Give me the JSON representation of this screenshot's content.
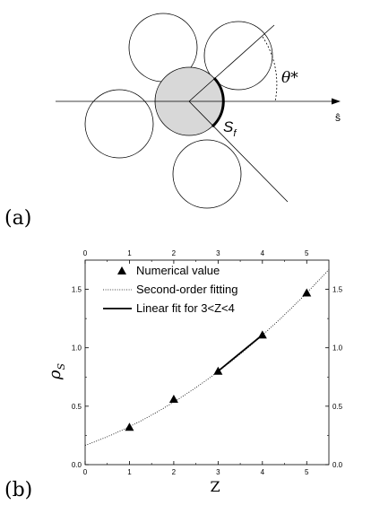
{
  "panel_a": {
    "label": "(a)",
    "theta_label": "θ*",
    "sf_label": "S",
    "sf_subscript": "f",
    "s_hat_label": "ŝ"
  },
  "panel_b": {
    "label": "(b)"
  },
  "chart_data": {
    "type": "scatter",
    "xlabel": "Z",
    "ylabel": "ρ",
    "ylabel_subscript": "S",
    "xlim": [
      0,
      5.5
    ],
    "ylim": [
      0,
      1.75
    ],
    "x_ticks": [
      "0",
      "1",
      "2",
      "3",
      "4",
      "5"
    ],
    "y_ticks": [
      "0.0",
      "0.5",
      "1.0",
      "1.5"
    ],
    "grid": false,
    "legend_position": "top-left",
    "series": [
      {
        "name": "Numerical value",
        "kind": "markers",
        "marker": "triangle",
        "x": [
          1,
          2,
          3,
          4,
          5
        ],
        "y": [
          0.32,
          0.56,
          0.8,
          1.11,
          1.47
        ]
      },
      {
        "name": "Second-order fitting",
        "kind": "dotted-curve",
        "coefficients": [
          0.165,
          0.135,
          0.0252
        ]
      },
      {
        "name": "Linear fit for 3<Z<4",
        "kind": "solid-line",
        "x": [
          3,
          4
        ],
        "y": [
          0.8,
          1.11
        ]
      }
    ]
  }
}
